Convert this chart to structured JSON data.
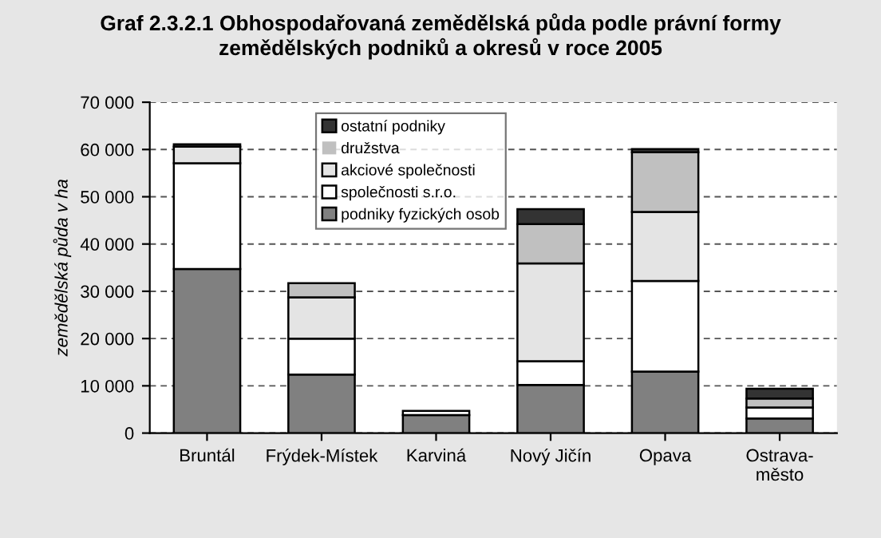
{
  "chart_data": {
    "type": "bar",
    "stacked": true,
    "title": "Graf 2.3.2.1 Obhospodařovaná zemědělská půda podle právní formy\nzemědělských podniků a okresů v roce 2005",
    "ylabel": "zemědělská půda v ha",
    "categories": [
      "Bruntál",
      "Frýdek-Místek",
      "Karviná",
      "Nový Jičín",
      "Opava",
      "Ostrava-\nměsto"
    ],
    "series": [
      {
        "name": "podniky fyzických osob",
        "color": "#808080",
        "values": [
          34700,
          12400,
          3800,
          10200,
          13000,
          3100
        ]
      },
      {
        "name": "společnosti s.r.o.",
        "color": "#ffffff",
        "values": [
          22400,
          7600,
          900,
          5000,
          19200,
          2300
        ]
      },
      {
        "name": "akciové společnosti",
        "color": "#e4e4e4",
        "values": [
          3500,
          8700,
          0,
          20700,
          14600,
          0
        ]
      },
      {
        "name": "družstva",
        "color": "#c0c0c0",
        "values": [
          0,
          3000,
          0,
          8300,
          12600,
          1900
        ]
      },
      {
        "name": "ostatní podniky",
        "color": "#333333",
        "values": [
          500,
          0,
          0,
          3200,
          700,
          2100
        ]
      }
    ],
    "ylim": [
      0,
      70000
    ],
    "yticks": [
      0,
      {
        "value": 10000,
        "label": "10 000"
      },
      {
        "value": 20000,
        "label": "20 000"
      },
      {
        "value": 30000,
        "label": "30 000"
      },
      {
        "value": 40000,
        "label": "40 000"
      },
      {
        "value": 50000,
        "label": "50 000"
      },
      {
        "value": 60000,
        "label": "60 000"
      },
      {
        "value": 70000,
        "label": "70 000"
      }
    ],
    "grid": "y",
    "legend": "top"
  }
}
